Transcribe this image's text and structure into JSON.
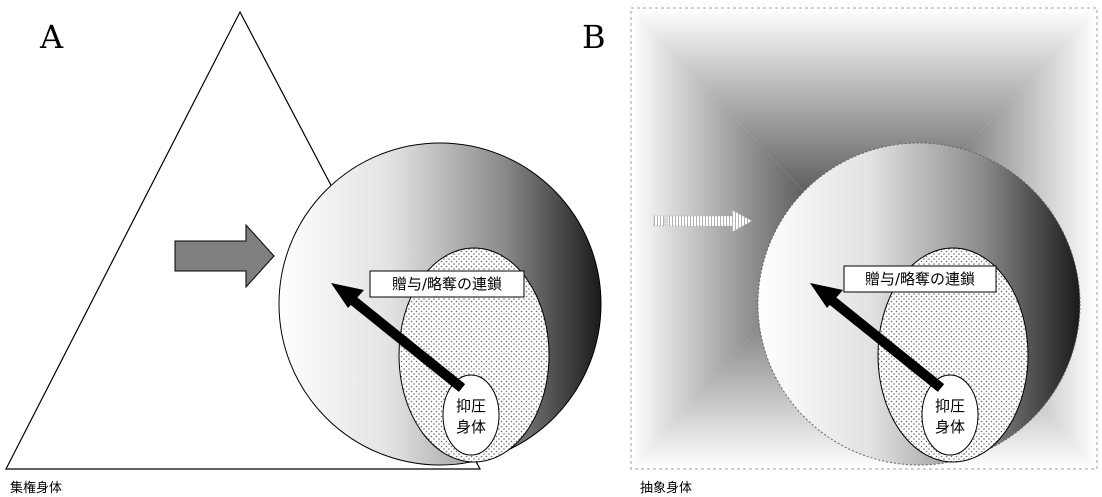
{
  "panel_a": {
    "letter": "A",
    "caption": "集権身体",
    "label": "贈与/略奪の連鎖",
    "inner_line1": "抑圧",
    "inner_line2": "身体"
  },
  "panel_b": {
    "letter": "B",
    "caption": "抽象身体",
    "label": "贈与/略奪の連鎖",
    "inner_line1": "抑圧",
    "inner_line2": "身体"
  },
  "colors": {
    "outline": "#000000",
    "arrow_fill": "#7f7f7f",
    "gradient_light": "#ffffff",
    "gradient_dark": "#1a1a1a"
  }
}
